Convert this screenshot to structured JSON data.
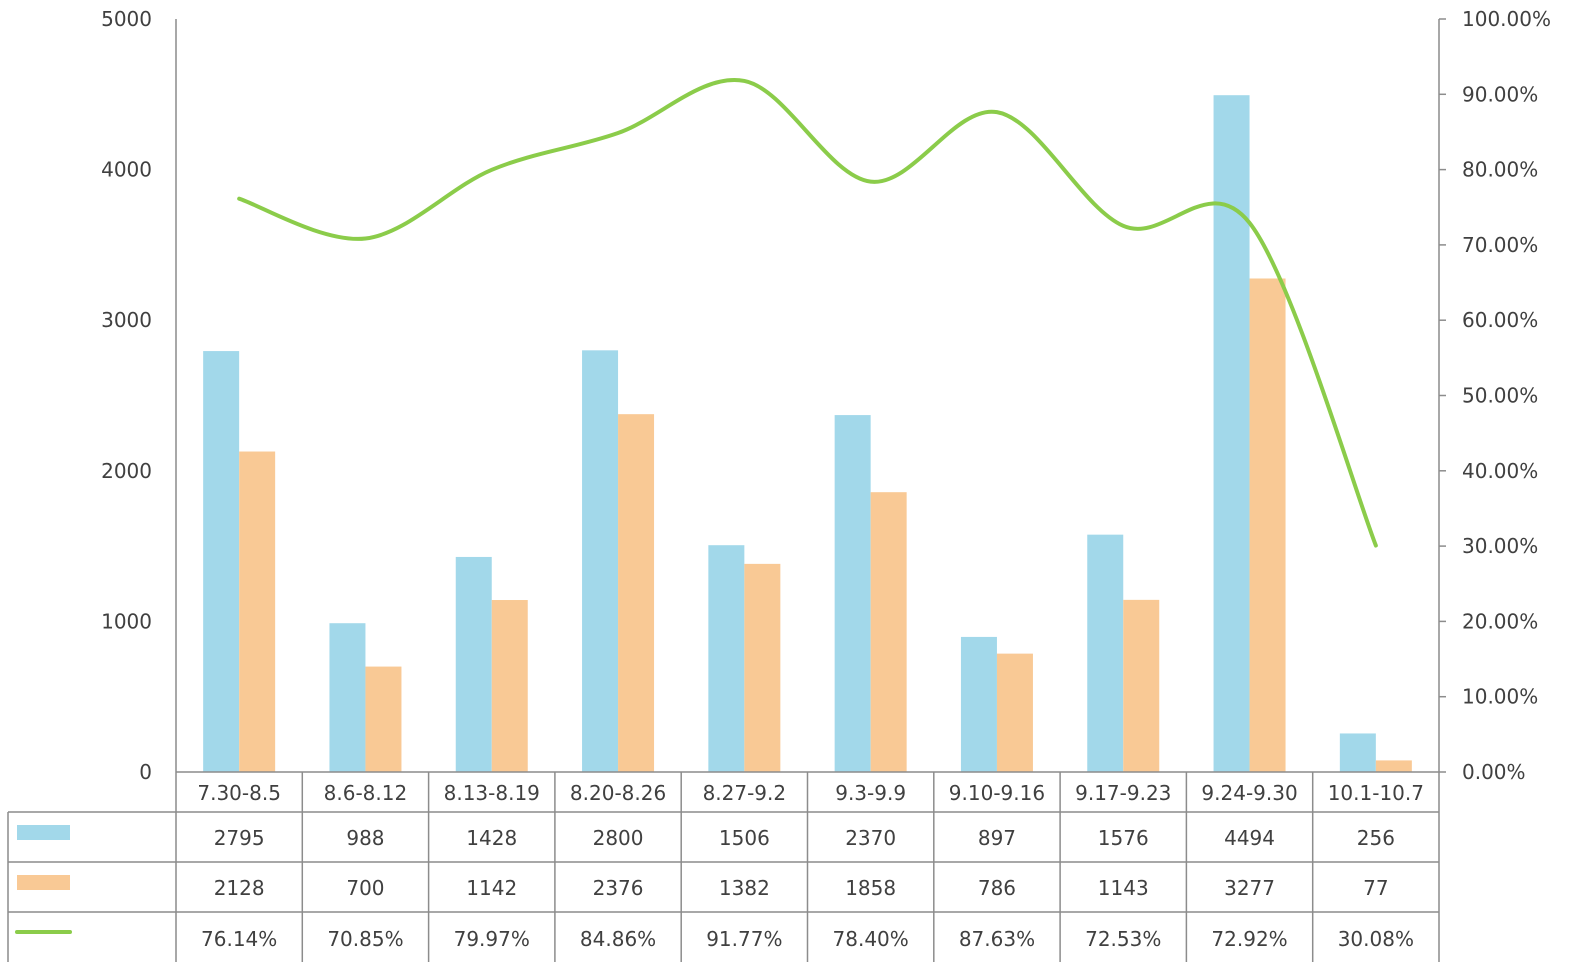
{
  "chart_data": {
    "type": "bar",
    "categories": [
      "7.30-8.5",
      "8.6-8.12",
      "8.13-8.19",
      "8.20-8.26",
      "8.27-9.2",
      "9.3-9.9",
      "9.10-9.16",
      "9.17-9.23",
      "9.24-9.30",
      "10.1-10.7"
    ],
    "series": [
      {
        "type": "bar",
        "axis": "left",
        "color": "#a2d8ea",
        "values": [
          2795,
          988,
          1428,
          2800,
          1506,
          2370,
          897,
          1576,
          4494,
          256
        ]
      },
      {
        "type": "bar",
        "axis": "left",
        "color": "#f9c995",
        "values": [
          2128,
          700,
          1142,
          2376,
          1382,
          1858,
          786,
          1143,
          3277,
          77
        ]
      },
      {
        "type": "line",
        "axis": "right",
        "color": "#8bcc4a",
        "values": [
          0.7614,
          0.7085,
          0.7997,
          0.8486,
          0.9177,
          0.784,
          0.8763,
          0.7253,
          0.7292,
          0.3008
        ],
        "labels": [
          "76.14%",
          "70.85%",
          "79.97%",
          "84.86%",
          "91.77%",
          "78.40%",
          "87.63%",
          "72.53%",
          "72.92%",
          "30.08%"
        ]
      }
    ],
    "y_left": {
      "min": 0,
      "max": 5000,
      "ticks": [
        "0",
        "1000",
        "2000",
        "3000",
        "4000",
        "5000"
      ]
    },
    "y_right": {
      "min": 0,
      "max": 1.0,
      "ticks": [
        "0.00%",
        "10.00%",
        "20.00%",
        "30.00%",
        "40.00%",
        "50.00%",
        "60.00%",
        "70.00%",
        "80.00%",
        "90.00%",
        "100.00%"
      ]
    },
    "grid": false,
    "legend": "data-table-left"
  }
}
